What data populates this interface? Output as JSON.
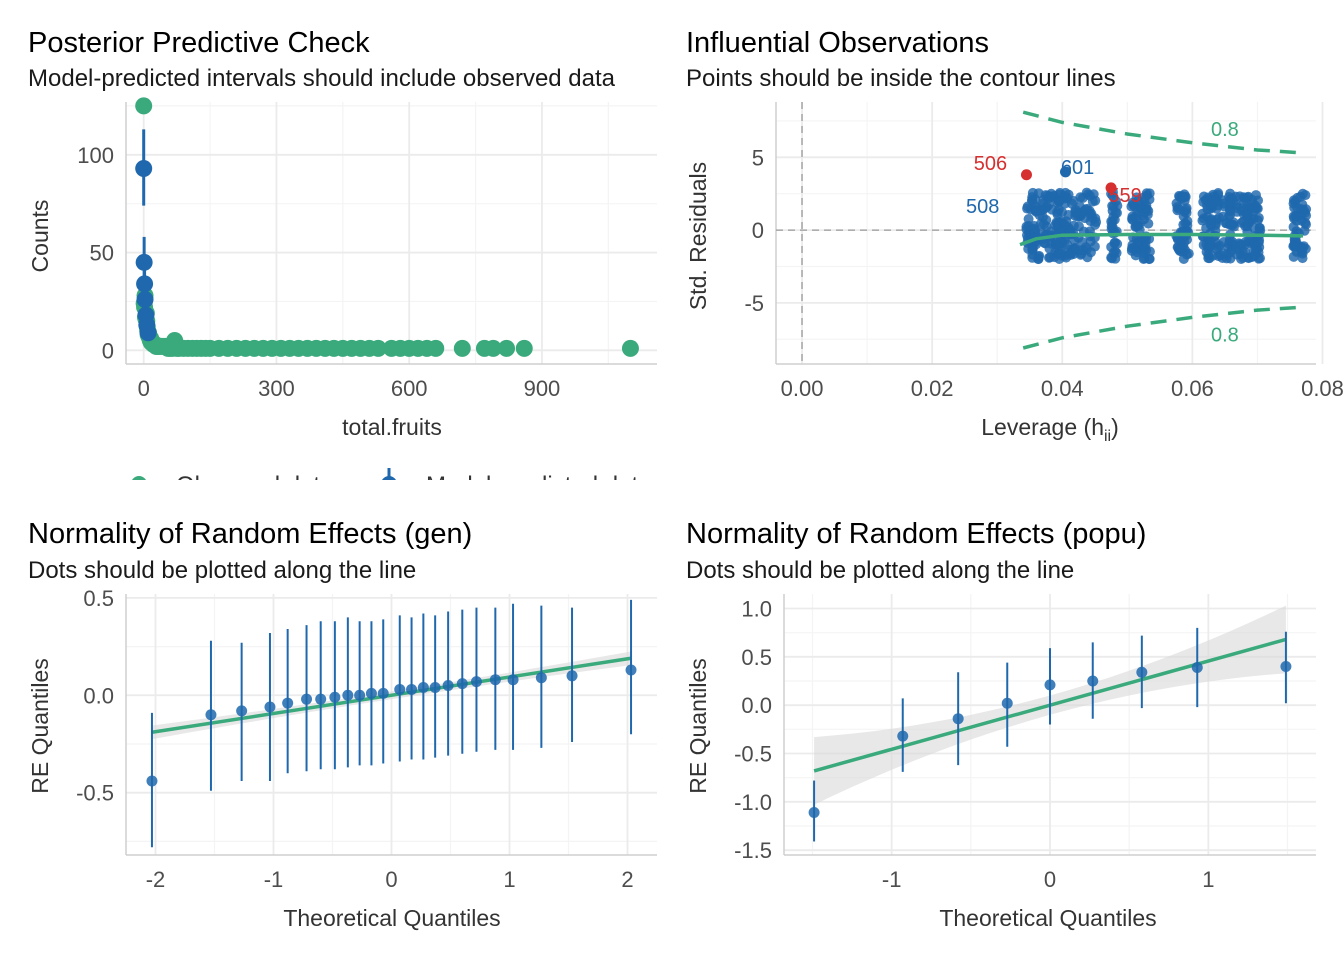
{
  "colors": {
    "green": "#3aaa7c",
    "blue": "#1f68ad",
    "red": "#d62f2f",
    "grid": "#ebebeb",
    "grid_minor": "#f4f4f4",
    "band": "#d9d9d9"
  },
  "chart_data": [
    {
      "id": "ppc",
      "type": "scatter",
      "title": "Posterior Predictive Check",
      "subtitle": "Model-predicted intervals should include observed data",
      "xlabel": "total.fruits",
      "ylabel": "Counts",
      "xlim": [
        -40,
        1160
      ],
      "ylim": [
        -7,
        127
      ],
      "xticks": [
        0,
        300,
        600,
        900
      ],
      "yticks": [
        0,
        50,
        100
      ],
      "grid": true,
      "legend": {
        "position": "bottom",
        "entries": [
          "Observed data",
          "Model-predicted data"
        ]
      },
      "series": [
        {
          "name": "Observed data",
          "points": [
            [
              0,
              125
            ],
            [
              1,
              24
            ],
            [
              2,
              22
            ],
            [
              3,
              28
            ],
            [
              4,
              17
            ],
            [
              5,
              16
            ],
            [
              6,
              19
            ],
            [
              7,
              15
            ],
            [
              8,
              12
            ],
            [
              9,
              10
            ],
            [
              10,
              8
            ],
            [
              11,
              9
            ],
            [
              12,
              7
            ],
            [
              13,
              7
            ],
            [
              14,
              6
            ],
            [
              15,
              5
            ],
            [
              16,
              6
            ],
            [
              17,
              4
            ],
            [
              18,
              4
            ],
            [
              20,
              4
            ],
            [
              22,
              3
            ],
            [
              24,
              3
            ],
            [
              26,
              3
            ],
            [
              28,
              2
            ],
            [
              30,
              2
            ],
            [
              33,
              2
            ],
            [
              36,
              2
            ],
            [
              40,
              2
            ],
            [
              45,
              2
            ],
            [
              50,
              2
            ],
            [
              55,
              1
            ],
            [
              60,
              1
            ],
            [
              65,
              1
            ],
            [
              70,
              5
            ],
            [
              75,
              1
            ],
            [
              80,
              1
            ],
            [
              90,
              1
            ],
            [
              100,
              1
            ],
            [
              110,
              1
            ],
            [
              120,
              1
            ],
            [
              130,
              1
            ],
            [
              140,
              1
            ],
            [
              150,
              1
            ],
            [
              170,
              1
            ],
            [
              190,
              1
            ],
            [
              210,
              1
            ],
            [
              230,
              1
            ],
            [
              250,
              1
            ],
            [
              270,
              1
            ],
            [
              290,
              1
            ],
            [
              310,
              1
            ],
            [
              330,
              1
            ],
            [
              350,
              1
            ],
            [
              370,
              1
            ],
            [
              390,
              1
            ],
            [
              410,
              1
            ],
            [
              430,
              1
            ],
            [
              450,
              1
            ],
            [
              470,
              1
            ],
            [
              490,
              1
            ],
            [
              510,
              1
            ],
            [
              530,
              1
            ],
            [
              560,
              1
            ],
            [
              580,
              1
            ],
            [
              600,
              1
            ],
            [
              620,
              1
            ],
            [
              640,
              1
            ],
            [
              660,
              1
            ],
            [
              720,
              1
            ],
            [
              770,
              1
            ],
            [
              790,
              1
            ],
            [
              820,
              1
            ],
            [
              860,
              1
            ],
            [
              1100,
              1
            ]
          ]
        },
        {
          "name": "Model-predicted data",
          "points": [
            {
              "x": 0,
              "y": 93,
              "lo": 74,
              "hi": 113
            },
            {
              "x": 1,
              "y": 45,
              "lo": 33,
              "hi": 58
            },
            {
              "x": 2,
              "y": 34,
              "lo": 24,
              "hi": 44
            },
            {
              "x": 3,
              "y": 26,
              "lo": 18,
              "hi": 34
            },
            {
              "x": 5,
              "y": 18,
              "lo": 12,
              "hi": 25
            },
            {
              "x": 7,
              "y": 13,
              "lo": 8,
              "hi": 19
            },
            {
              "x": 10,
              "y": 9,
              "lo": 5,
              "hi": 14
            }
          ]
        }
      ]
    },
    {
      "id": "influence",
      "type": "scatter",
      "title": "Influential Observations",
      "subtitle": "Points should be inside the contour lines",
      "xlabel": "Leverage (h",
      "xlabel_sub": "ii",
      "ylabel": "Std. Residuals",
      "xlim": [
        -0.004,
        0.079
      ],
      "ylim": [
        -9.2,
        8.8
      ],
      "xticks": [
        0.0,
        0.02,
        0.04,
        0.06,
        0.08
      ],
      "xtick_labels": [
        "0.00",
        "0.02",
        "0.04",
        "0.06",
        "0.08"
      ],
      "yticks": [
        -5,
        0,
        5
      ],
      "grid": true,
      "contour_label": "0.8",
      "contour_upper": [
        [
          0.034,
          8.1
        ],
        [
          0.04,
          7.4
        ],
        [
          0.05,
          6.6
        ],
        [
          0.06,
          6.0
        ],
        [
          0.07,
          5.5
        ],
        [
          0.077,
          5.3
        ]
      ],
      "contour_lower": [
        [
          0.034,
          -8.1
        ],
        [
          0.04,
          -7.4
        ],
        [
          0.05,
          -6.6
        ],
        [
          0.06,
          -6.0
        ],
        [
          0.07,
          -5.5
        ],
        [
          0.077,
          -5.3
        ]
      ],
      "smooth": [
        [
          0.0335,
          -1.0
        ],
        [
          0.036,
          -0.6
        ],
        [
          0.04,
          -0.35
        ],
        [
          0.05,
          -0.3
        ],
        [
          0.06,
          -0.3
        ],
        [
          0.07,
          -0.35
        ],
        [
          0.077,
          -0.4
        ]
      ],
      "clusters": [
        [
          0.0345,
          0.0455
        ],
        [
          0.0475,
          0.0485
        ],
        [
          0.0505,
          0.0535
        ],
        [
          0.0575,
          0.0595
        ],
        [
          0.0615,
          0.0705
        ],
        [
          0.0755,
          0.0775
        ]
      ],
      "labels": [
        {
          "text": "506",
          "x": 0.0345,
          "y": 3.8,
          "color": "red"
        },
        {
          "text": "601",
          "x": 0.0405,
          "y": 4.0,
          "color": "blue"
        },
        {
          "text": "559",
          "x": 0.0475,
          "y": 2.9,
          "color": "red"
        },
        {
          "text": "508",
          "x": 0.0333,
          "y": 0.9,
          "color": "blue"
        }
      ]
    },
    {
      "id": "re_gen",
      "type": "scatter",
      "title": "Normality of Random Effects (gen)",
      "subtitle": "Dots should be plotted along the line",
      "xlabel": "Theoretical Quantiles",
      "ylabel": "RE Quantiles",
      "xlim": [
        -2.25,
        2.25
      ],
      "ylim": [
        -0.82,
        0.52
      ],
      "xticks": [
        -2,
        -1,
        0,
        1,
        2
      ],
      "yticks": [
        -0.5,
        0.0,
        0.5
      ],
      "ytick_labels": [
        "-0.5",
        "0.0",
        "0.5"
      ],
      "grid": true,
      "fit_line": [
        [
          -2.03,
          -0.19
        ],
        [
          2.03,
          0.19
        ]
      ],
      "band_halfwidth": [
        0.035,
        0.02,
        0.035
      ],
      "points": [
        {
          "x": -2.03,
          "y": -0.44,
          "lo": -0.78,
          "hi": -0.09
        },
        {
          "x": -1.53,
          "y": -0.1,
          "lo": -0.49,
          "hi": 0.28
        },
        {
          "x": -1.27,
          "y": -0.08,
          "lo": -0.44,
          "hi": 0.27
        },
        {
          "x": -1.03,
          "y": -0.06,
          "lo": -0.44,
          "hi": 0.32
        },
        {
          "x": -0.88,
          "y": -0.04,
          "lo": -0.4,
          "hi": 0.34
        },
        {
          "x": -0.72,
          "y": -0.02,
          "lo": -0.39,
          "hi": 0.36
        },
        {
          "x": -0.6,
          "y": -0.02,
          "lo": -0.38,
          "hi": 0.38
        },
        {
          "x": -0.48,
          "y": -0.01,
          "lo": -0.38,
          "hi": 0.38
        },
        {
          "x": -0.37,
          "y": 0.0,
          "lo": -0.37,
          "hi": 0.4
        },
        {
          "x": -0.27,
          "y": 0.0,
          "lo": -0.36,
          "hi": 0.38
        },
        {
          "x": -0.17,
          "y": 0.01,
          "lo": -0.36,
          "hi": 0.38
        },
        {
          "x": -0.07,
          "y": 0.01,
          "lo": -0.35,
          "hi": 0.39
        },
        {
          "x": 0.07,
          "y": 0.03,
          "lo": -0.34,
          "hi": 0.41
        },
        {
          "x": 0.17,
          "y": 0.03,
          "lo": -0.33,
          "hi": 0.4
        },
        {
          "x": 0.27,
          "y": 0.04,
          "lo": -0.33,
          "hi": 0.42
        },
        {
          "x": 0.37,
          "y": 0.04,
          "lo": -0.32,
          "hi": 0.41
        },
        {
          "x": 0.48,
          "y": 0.05,
          "lo": -0.31,
          "hi": 0.43
        },
        {
          "x": 0.6,
          "y": 0.06,
          "lo": -0.3,
          "hi": 0.44
        },
        {
          "x": 0.72,
          "y": 0.07,
          "lo": -0.29,
          "hi": 0.45
        },
        {
          "x": 0.88,
          "y": 0.08,
          "lo": -0.28,
          "hi": 0.45
        },
        {
          "x": 1.03,
          "y": 0.08,
          "lo": -0.28,
          "hi": 0.47
        },
        {
          "x": 1.27,
          "y": 0.09,
          "lo": -0.27,
          "hi": 0.46
        },
        {
          "x": 1.53,
          "y": 0.1,
          "lo": -0.24,
          "hi": 0.45
        },
        {
          "x": 2.03,
          "y": 0.13,
          "lo": -0.2,
          "hi": 0.49
        }
      ]
    },
    {
      "id": "re_popu",
      "type": "scatter",
      "title": "Normality of Random Effects (popu)",
      "subtitle": "Dots should be plotted along the line",
      "xlabel": "Theoretical Quantiles",
      "ylabel": "RE Quantiles",
      "xlim": [
        -1.68,
        1.68
      ],
      "ylim": [
        -1.55,
        1.15
      ],
      "xticks": [
        -1,
        0,
        1
      ],
      "yticks": [
        -1.5,
        -1.0,
        -0.5,
        0.0,
        0.5,
        1.0
      ],
      "ytick_labels": [
        "-1.5",
        "-1.0",
        "-0.5",
        "0.0",
        "0.5",
        "1.0"
      ],
      "grid": true,
      "fit_line": [
        [
          -1.49,
          -0.68
        ],
        [
          1.49,
          0.68
        ]
      ],
      "band_halfwidth": [
        0.35,
        0.1,
        0.35
      ],
      "points": [
        {
          "x": -1.49,
          "y": -1.11,
          "lo": -1.41,
          "hi": -0.78
        },
        {
          "x": -0.93,
          "y": -0.32,
          "lo": -0.69,
          "hi": 0.07
        },
        {
          "x": -0.58,
          "y": -0.14,
          "lo": -0.62,
          "hi": 0.34
        },
        {
          "x": -0.27,
          "y": 0.02,
          "lo": -0.43,
          "hi": 0.44
        },
        {
          "x": 0.0,
          "y": 0.21,
          "lo": -0.2,
          "hi": 0.59
        },
        {
          "x": 0.27,
          "y": 0.25,
          "lo": -0.14,
          "hi": 0.65
        },
        {
          "x": 0.58,
          "y": 0.34,
          "lo": -0.03,
          "hi": 0.72
        },
        {
          "x": 0.93,
          "y": 0.39,
          "lo": -0.02,
          "hi": 0.8
        },
        {
          "x": 1.49,
          "y": 0.4,
          "lo": 0.02,
          "hi": 0.76
        }
      ]
    }
  ]
}
